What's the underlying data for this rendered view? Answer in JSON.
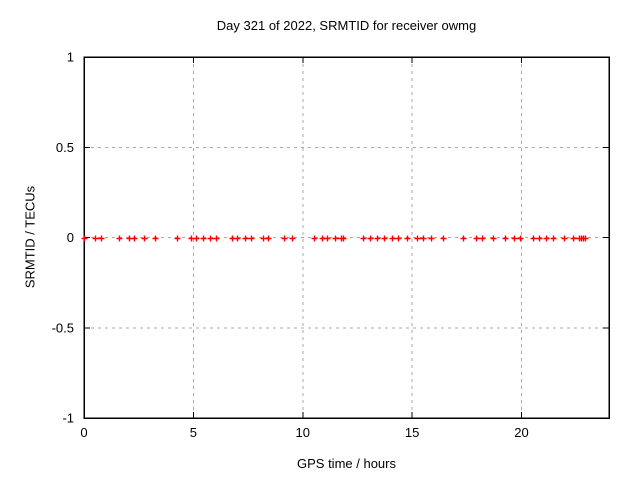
{
  "chart_data": {
    "type": "scatter",
    "title": "Day 321 of 2022, SRMTID for receiver owmg",
    "xlabel": "GPS time / hours",
    "ylabel": "SRMTID / TECUs",
    "xlim": [
      0,
      24
    ],
    "ylim": [
      -1,
      1
    ],
    "xticks": [
      0,
      5,
      10,
      15,
      20
    ],
    "xtick_labels": [
      "0",
      "5",
      "10",
      "15",
      "20"
    ],
    "yticks": [
      -1,
      -0.5,
      0,
      0.5,
      1
    ],
    "ytick_labels": [
      "-1",
      "-0.5",
      "0",
      "0.5",
      "1"
    ],
    "grid": true,
    "legend_position": "none",
    "marker": {
      "shape": "plus",
      "color": "#ff0000",
      "size": 7
    },
    "colors": {
      "marker": "#ff0000",
      "grid": "#a9a9a9",
      "border": "#000000",
      "background": "#ffffff"
    },
    "series": [
      {
        "name": "SRMTID",
        "x": [
          0.01,
          0.52,
          0.79,
          1.61,
          2.07,
          2.3,
          2.76,
          3.26,
          4.27,
          4.91,
          5.13,
          5.45,
          5.77,
          6.05,
          6.78,
          7.01,
          7.38,
          7.65,
          8.2,
          8.43,
          9.16,
          9.52,
          10.53,
          10.9,
          11.12,
          11.49,
          11.76,
          11.86,
          12.77,
          13.09,
          13.41,
          13.73,
          14.1,
          14.37,
          14.78,
          15.24,
          15.51,
          15.88,
          16.43,
          17.34,
          17.94,
          18.21,
          18.71,
          19.26,
          19.67,
          19.95,
          20.54,
          20.82,
          21.14,
          21.46,
          21.92,
          22.37,
          22.62,
          22.72,
          22.8,
          22.9
        ],
        "y": [
          0,
          0,
          0,
          0,
          0,
          0,
          0,
          0,
          0,
          0,
          0,
          0,
          0,
          0,
          0,
          0,
          0,
          0,
          0,
          0,
          0,
          0,
          0,
          0,
          0,
          0,
          0,
          0,
          0,
          0,
          0,
          0,
          0,
          0,
          0,
          0,
          0,
          0,
          0,
          0,
          0,
          0,
          0,
          0,
          0,
          0,
          0,
          0,
          0,
          0,
          0,
          0,
          0,
          0,
          0,
          0
        ]
      }
    ]
  }
}
